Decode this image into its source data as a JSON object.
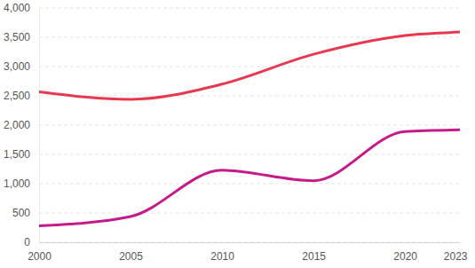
{
  "chart_data": {
    "type": "line",
    "x": [
      2000,
      2005,
      2010,
      2015,
      2020,
      2023
    ],
    "series": [
      {
        "color": "#e63950",
        "values": [
          2570,
          2440,
          2700,
          3210,
          3530,
          3590
        ]
      },
      {
        "color": "#c51b8a",
        "values": [
          280,
          440,
          1230,
          1050,
          1890,
          1920
        ]
      }
    ],
    "xlim": [
      2000,
      2023
    ],
    "xticks": [
      2000,
      2005,
      2010,
      2015,
      2020,
      2023
    ],
    "ylim": [
      0,
      4000
    ],
    "yticks": [
      0,
      500,
      {
        "value": 1000,
        "label": "1,000"
      },
      {
        "value": 1500,
        "label": "1,500"
      },
      {
        "value": 2000,
        "label": "2,000"
      },
      {
        "value": 2500,
        "label": "2,500"
      },
      {
        "value": 3000,
        "label": "3,000"
      },
      {
        "value": 3500,
        "label": "3,500"
      },
      {
        "value": 4000,
        "label": "4,000"
      }
    ],
    "grid": true
  }
}
